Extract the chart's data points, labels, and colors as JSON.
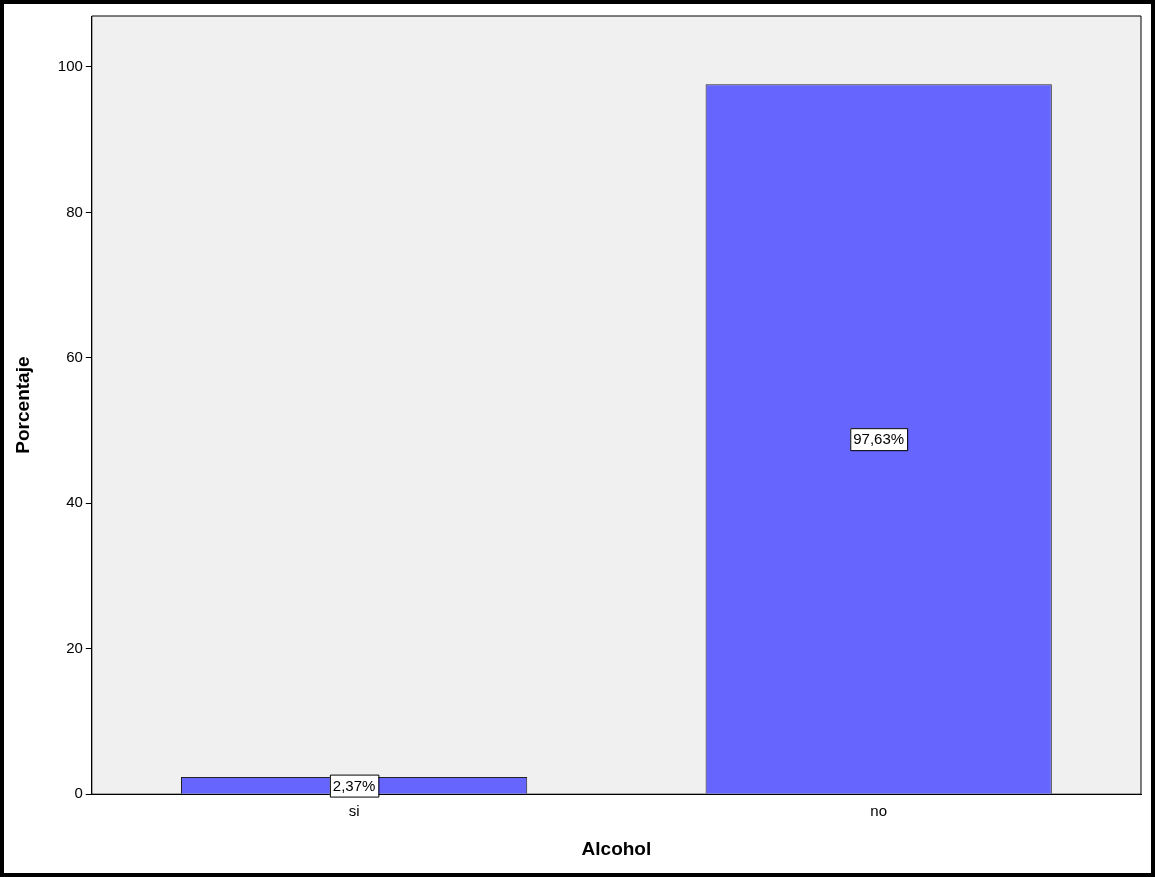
{
  "chart_data": {
    "type": "bar",
    "xlabel": "Alcohol",
    "ylabel": "Porcentaje",
    "categories": [
      "si",
      "no"
    ],
    "values": [
      2.37,
      97.63
    ],
    "value_labels": [
      "2,37%",
      "97,63%"
    ],
    "color": "#6666ff",
    "ylim": [
      0,
      107
    ],
    "yticks": [
      0,
      20,
      40,
      60,
      80,
      100
    ],
    "grid": false,
    "legend": false
  }
}
